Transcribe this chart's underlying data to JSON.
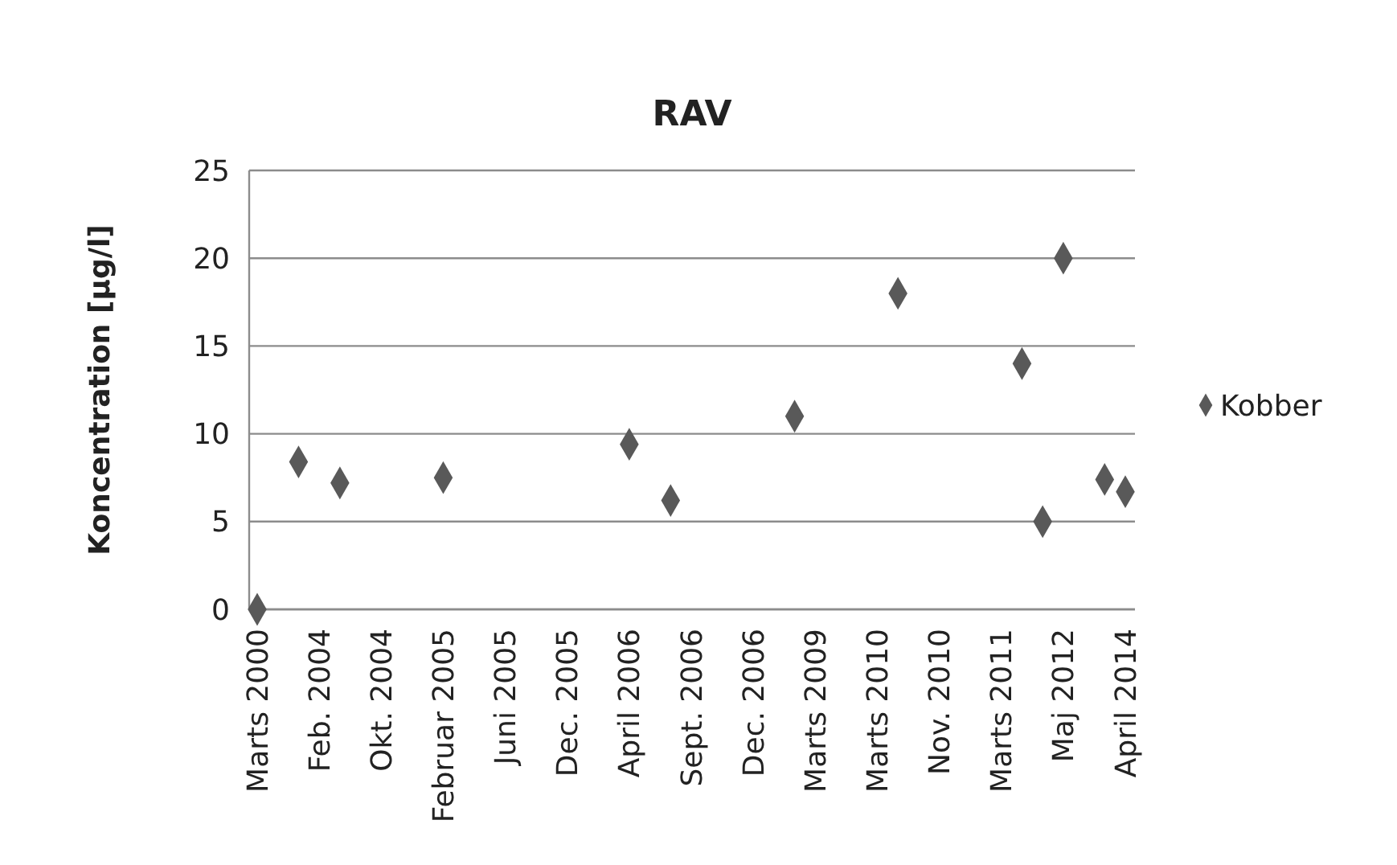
{
  "chart_data": {
    "type": "scatter",
    "title": "RAV",
    "ylabel": "Koncentration [µg/l]",
    "categories": [
      "Marts 2000",
      null,
      null,
      "Feb. 2004",
      null,
      null,
      "Okt. 2004",
      null,
      null,
      "Februar 2005",
      null,
      null,
      "Juni 2005",
      null,
      null,
      "Dec. 2005",
      null,
      null,
      "April 2006",
      null,
      null,
      "Sept. 2006",
      null,
      null,
      "Dec. 2006",
      null,
      null,
      "Marts 2009",
      null,
      null,
      "Marts 2010",
      null,
      null,
      "Nov. 2010",
      null,
      null,
      "Marts 2011",
      null,
      null,
      "Maj 2012",
      null,
      null,
      "April 2014"
    ],
    "series": [
      {
        "name": "Kobber",
        "color": "#595959",
        "values": [
          0,
          null,
          8.4,
          null,
          7.2,
          null,
          null,
          null,
          null,
          7.5,
          null,
          null,
          null,
          null,
          null,
          null,
          null,
          null,
          9.4,
          null,
          6.2,
          null,
          null,
          null,
          null,
          null,
          11.0,
          null,
          null,
          null,
          null,
          18.0,
          null,
          null,
          null,
          null,
          null,
          14.0,
          5.0,
          20.0,
          null,
          7.4,
          6.7
        ]
      }
    ],
    "ylim": [
      0,
      25
    ],
    "yticks": [
      0,
      5,
      10,
      15,
      20,
      25
    ],
    "grid": "y",
    "legend": "right",
    "marker": "diamond"
  }
}
